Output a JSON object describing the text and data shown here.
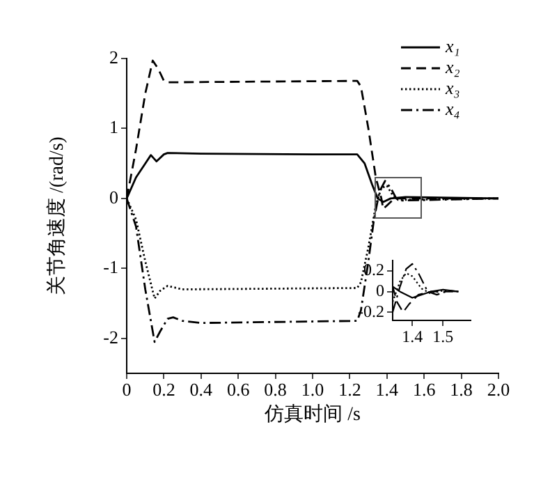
{
  "chart_data": [
    {
      "type": "line",
      "xlabel": "仿真时间 /s",
      "ylabel": "关节角速度 /(rad/s)",
      "xlim": [
        0,
        2
      ],
      "ylim": [
        -2.5,
        2
      ],
      "xticks": [
        0,
        0.2,
        0.4,
        0.6,
        0.8,
        {
          "value": 1,
          "label": "1.0"
        },
        1.2,
        1.4,
        1.6,
        1.8,
        {
          "value": 2,
          "label": "2.0"
        }
      ],
      "yticks": [
        -2,
        -1,
        0,
        1,
        2
      ],
      "grid": false,
      "legend": "top right",
      "marker": "none",
      "series": [
        {
          "name": "x₁",
          "color": "#000000",
          "line_style": "solid",
          "x": [
            0,
            0.05,
            0.1,
            0.13,
            0.16,
            0.2,
            0.22,
            0.4,
            1.0,
            1.24,
            1.28,
            1.32,
            1.35,
            1.38,
            1.42,
            1.5,
            2.0
          ],
          "values": [
            0,
            0.3,
            0.5,
            0.62,
            0.53,
            0.63,
            0.65,
            0.64,
            0.63,
            0.63,
            0.5,
            0.2,
            0,
            -0.05,
            0,
            0.02,
            0
          ]
        },
        {
          "name": "x₂",
          "color": "#000000",
          "line_style": "dashed",
          "x": [
            0,
            0.05,
            0.1,
            0.14,
            0.17,
            0.2,
            0.22,
            1.24,
            1.26,
            1.3,
            1.34,
            1.37,
            1.38,
            1.4,
            1.44,
            2.0
          ],
          "values": [
            0,
            0.7,
            1.5,
            1.97,
            1.85,
            1.68,
            1.66,
            1.68,
            1.6,
            1.0,
            0.3,
            0,
            -0.15,
            -0.1,
            0,
            0
          ]
        },
        {
          "name": "x₃",
          "color": "#000000",
          "line_style": "dotted",
          "x": [
            0,
            0.05,
            0.1,
            0.15,
            0.18,
            0.22,
            0.3,
            1.24,
            1.26,
            1.3,
            1.34,
            1.37,
            1.4,
            1.43,
            1.46,
            2.0
          ],
          "values": [
            0,
            -0.3,
            -0.9,
            -1.43,
            -1.32,
            -1.25,
            -1.3,
            -1.28,
            -1.2,
            -0.7,
            -0.1,
            0.15,
            0.18,
            0.05,
            -0.02,
            0
          ]
        },
        {
          "name": "x₄",
          "color": "#000000",
          "line_style": "dashdot",
          "x": [
            0,
            0.05,
            0.1,
            0.15,
            0.18,
            0.22,
            0.25,
            0.3,
            0.4,
            1.24,
            1.26,
            1.3,
            1.33,
            1.36,
            1.39,
            1.42,
            1.45,
            1.48,
            2.0
          ],
          "values": [
            0,
            -0.4,
            -1.3,
            -2.05,
            -1.9,
            -1.72,
            -1.7,
            -1.75,
            -1.78,
            -1.75,
            -1.6,
            -0.9,
            -0.3,
            0.1,
            0.25,
            0.15,
            0,
            -0.03,
            0
          ]
        }
      ]
    },
    {
      "type": "line",
      "xlim": [
        1.336,
        1.59
      ],
      "ylim": [
        -0.28,
        0.3
      ],
      "xticks": [
        1.4,
        1.5
      ],
      "yticks": [
        -0.2,
        0,
        0.2
      ],
      "grid": false,
      "marker": "none",
      "series": [
        {
          "color": "#000000",
          "line_style": "solid",
          "x": [
            1.336,
            1.36,
            1.4,
            1.43,
            1.46,
            1.5,
            1.55
          ],
          "values": [
            0.05,
            0,
            -0.06,
            -0.03,
            0,
            0.02,
            0
          ]
        },
        {
          "color": "#000000",
          "line_style": "dashed",
          "x": [
            1.336,
            1.35,
            1.37,
            1.39,
            1.42,
            1.46,
            1.55
          ],
          "values": [
            0.05,
            -0.1,
            -0.2,
            -0.12,
            -0.03,
            0,
            0
          ]
        },
        {
          "color": "#000000",
          "line_style": "dotted",
          "x": [
            1.336,
            1.36,
            1.38,
            1.4,
            1.43,
            1.46,
            1.5,
            1.55
          ],
          "values": [
            -0.1,
            0.1,
            0.18,
            0.15,
            0.03,
            -0.02,
            0.01,
            0
          ]
        },
        {
          "color": "#000000",
          "line_style": "dashdot",
          "x": [
            1.336,
            1.36,
            1.38,
            1.4,
            1.42,
            1.45,
            1.48,
            1.52,
            1.55
          ],
          "values": [
            -0.2,
            0.05,
            0.22,
            0.27,
            0.18,
            0,
            -0.03,
            0.01,
            0
          ]
        }
      ]
    }
  ]
}
